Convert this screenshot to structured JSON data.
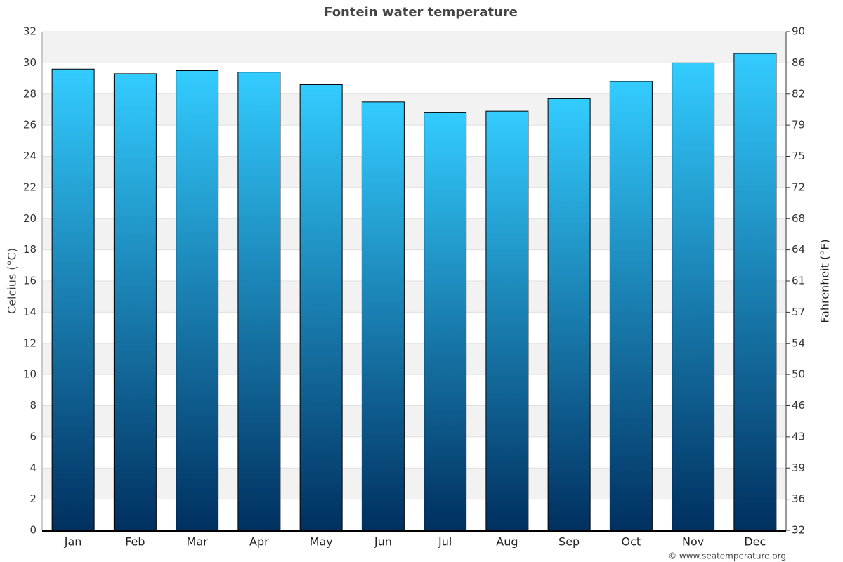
{
  "chart_data": {
    "type": "bar",
    "title": "Fontein water temperature",
    "y_label": "Celcius (°C)",
    "y2_label": "Fahrenheit (°F)",
    "source": "© www.seatemperature.org",
    "categories": [
      "Jan",
      "Feb",
      "Mar",
      "Apr",
      "May",
      "Jun",
      "Jul",
      "Aug",
      "Sep",
      "Oct",
      "Nov",
      "Dec"
    ],
    "values": [
      29.6,
      29.3,
      29.5,
      29.4,
      28.6,
      27.5,
      26.8,
      26.9,
      27.7,
      28.8,
      30.0,
      30.6
    ],
    "color_top": "#33ccff",
    "color_bottom": "#003060",
    "ylim": [
      0,
      32
    ],
    "yticks": [
      0,
      2,
      4,
      6,
      8,
      10,
      12,
      14,
      16,
      18,
      20,
      22,
      24,
      26,
      28,
      30,
      32
    ],
    "y2lim": [
      32,
      89.6
    ],
    "y2ticks": [
      32,
      {
        "value": 35.6,
        "label": "36"
      },
      {
        "value": 39.2,
        "label": "39"
      },
      {
        "value": 42.8,
        "label": "43"
      },
      {
        "value": 46.4,
        "label": "46"
      },
      50,
      {
        "value": 53.6,
        "label": "54"
      },
      {
        "value": 57.2,
        "label": "57"
      },
      {
        "value": 60.8,
        "label": "61"
      },
      {
        "value": 64.4,
        "label": "64"
      },
      68,
      {
        "value": 71.6,
        "label": "72"
      },
      {
        "value": 75.2,
        "label": "75"
      },
      {
        "value": 78.8,
        "label": "79"
      },
      {
        "value": 82.4,
        "label": "82"
      },
      86,
      {
        "value": 89.6,
        "label": "90"
      }
    ],
    "grid": true
  }
}
